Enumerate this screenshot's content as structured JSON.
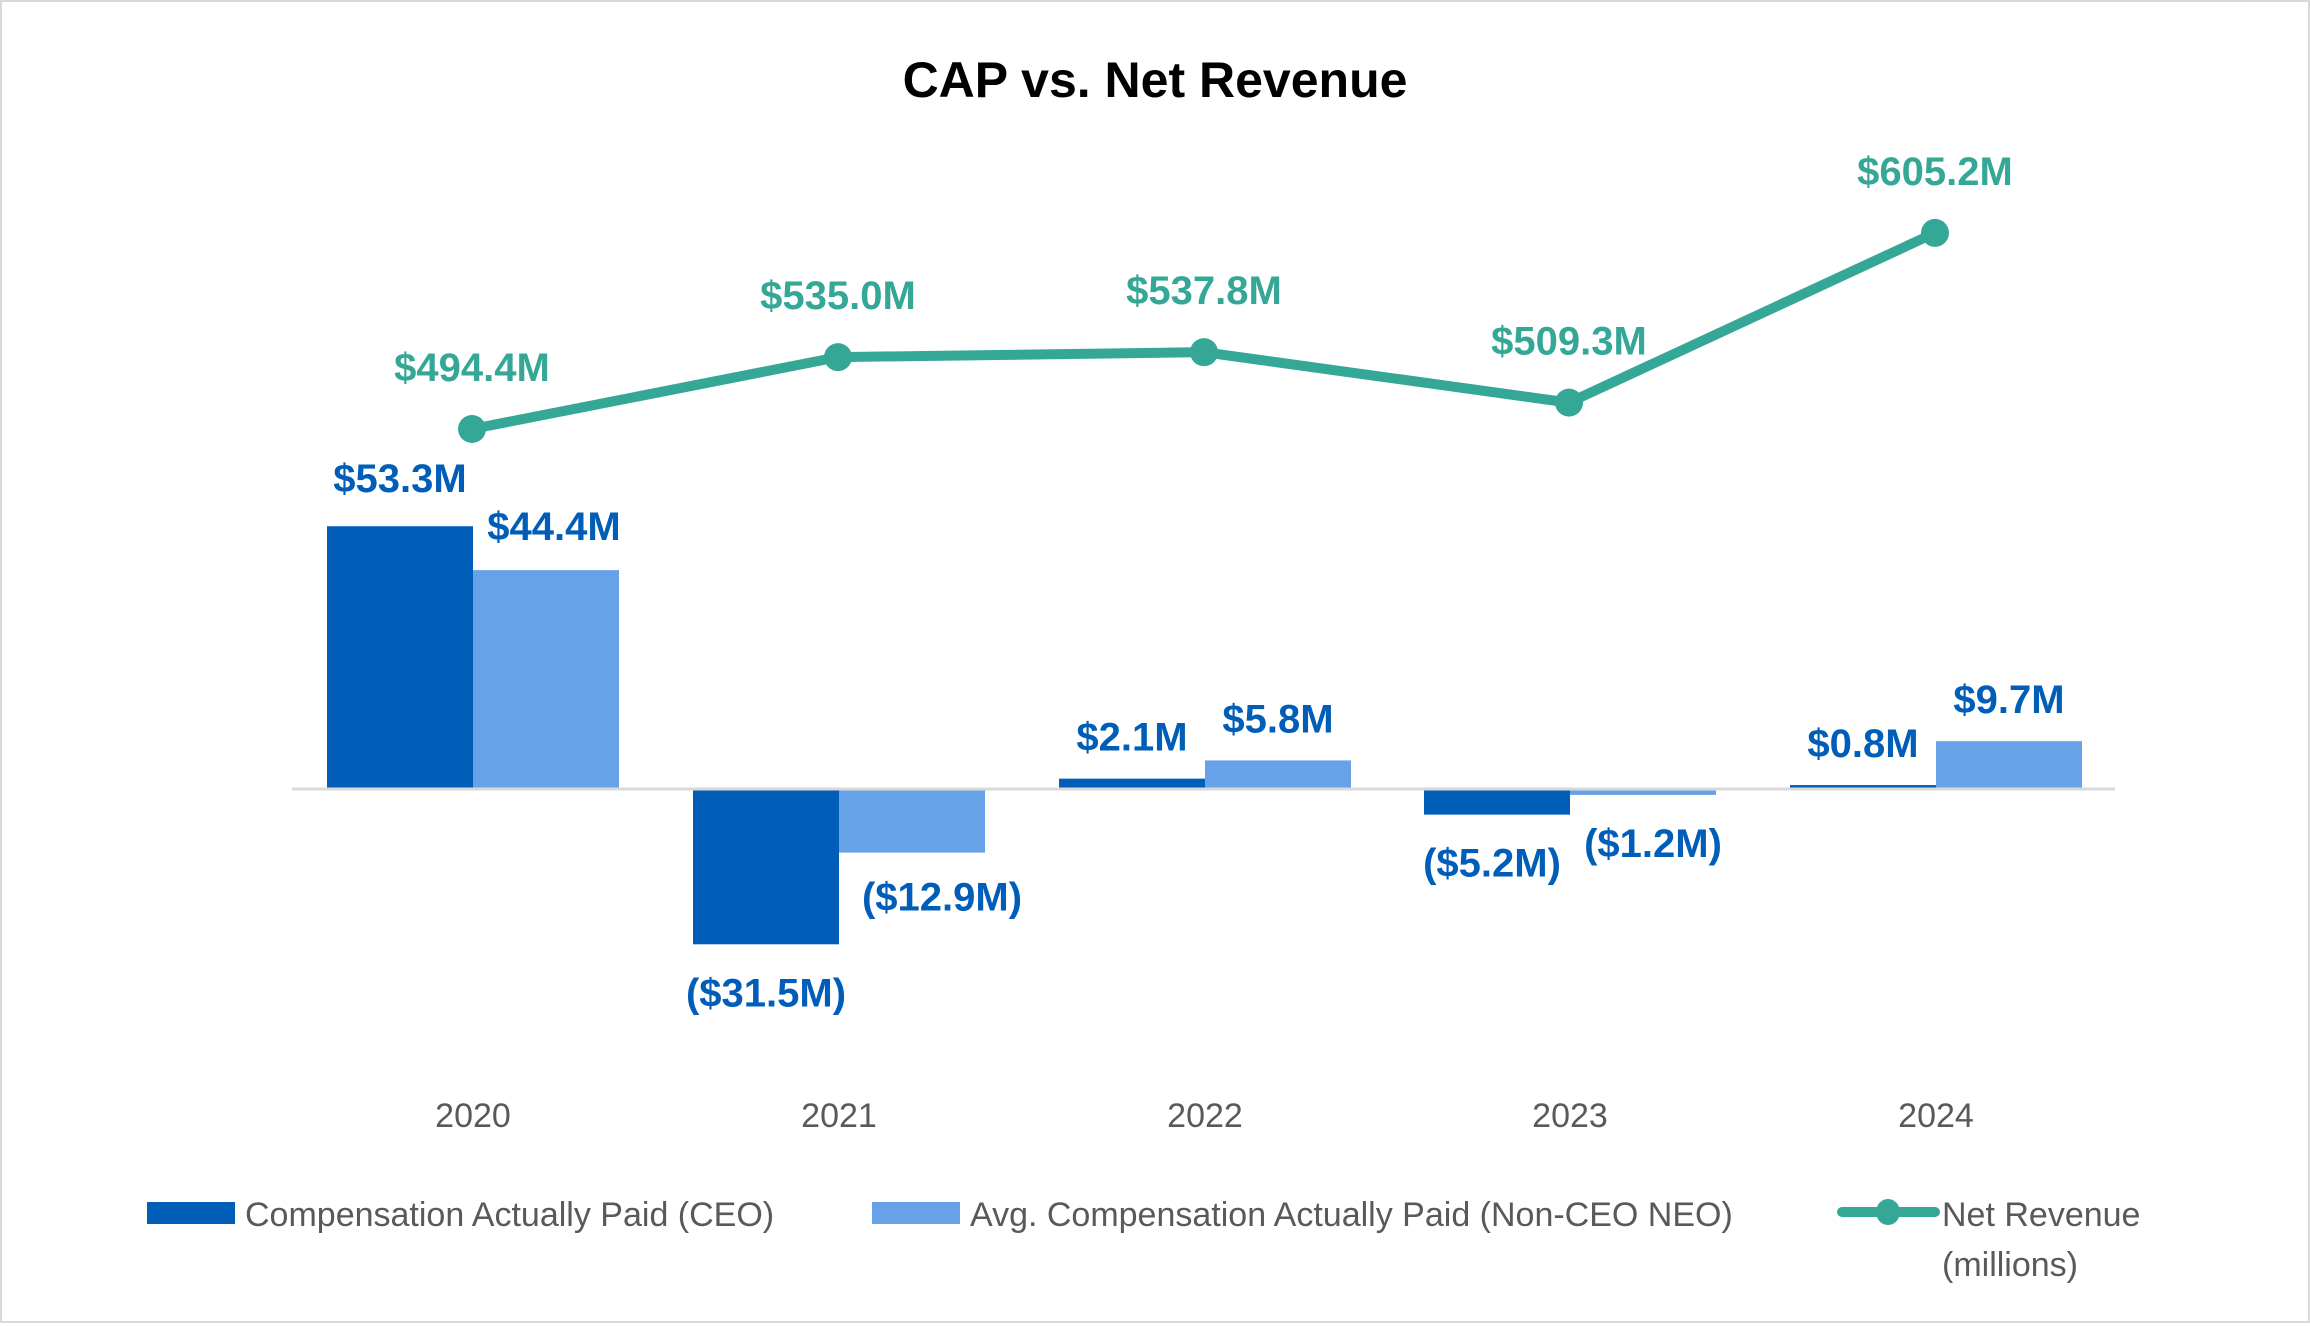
{
  "colors": {
    "ceo": "#005EB8",
    "neo": "#67A2E8",
    "revenue": "#35A796",
    "label_ceo": "#005EB8",
    "axis": "#d9d9d9"
  },
  "chart_data": {
    "type": "bar",
    "title": "CAP vs. Net Revenue",
    "xlabel": "",
    "ylabel": "",
    "categories": [
      "2020",
      "2021",
      "2022",
      "2023",
      "2024"
    ],
    "series": [
      {
        "name": "Compensation Actually Paid (CEO)",
        "type": "bar",
        "unit": "millions USD",
        "values": [
          53.3,
          -31.5,
          2.1,
          -5.2,
          0.8
        ],
        "labels": [
          "$53.3M",
          "($31.5M)",
          "$2.1M",
          "($5.2M)",
          "$0.8M"
        ]
      },
      {
        "name": "Avg. Compensation Actually Paid (Non-CEO NEO)",
        "type": "bar",
        "unit": "millions USD",
        "values": [
          44.4,
          -12.9,
          5.8,
          -1.2,
          9.7
        ],
        "labels": [
          "$44.4M",
          "($12.9M)",
          "$5.8M",
          "($1.2M)",
          "$9.7M"
        ]
      },
      {
        "name": "Net Revenue (millions)",
        "type": "line",
        "unit": "millions USD",
        "values": [
          494.4,
          535.0,
          537.8,
          509.3,
          605.2
        ],
        "labels": [
          "$494.4M",
          "$535.0M",
          "$537.8M",
          "$509.3M",
          "$605.2M"
        ]
      }
    ],
    "grid": false,
    "legend": {
      "position": "bottom",
      "entries": [
        {
          "label": "Compensation Actually Paid (CEO)",
          "marker": "square"
        },
        {
          "label": "Avg. Compensation Actually Paid (Non-CEO NEO)",
          "marker": "square"
        },
        {
          "label_line1": "Net Revenue",
          "label_line2": "(millions)",
          "marker": "line-with-dot"
        }
      ]
    }
  }
}
